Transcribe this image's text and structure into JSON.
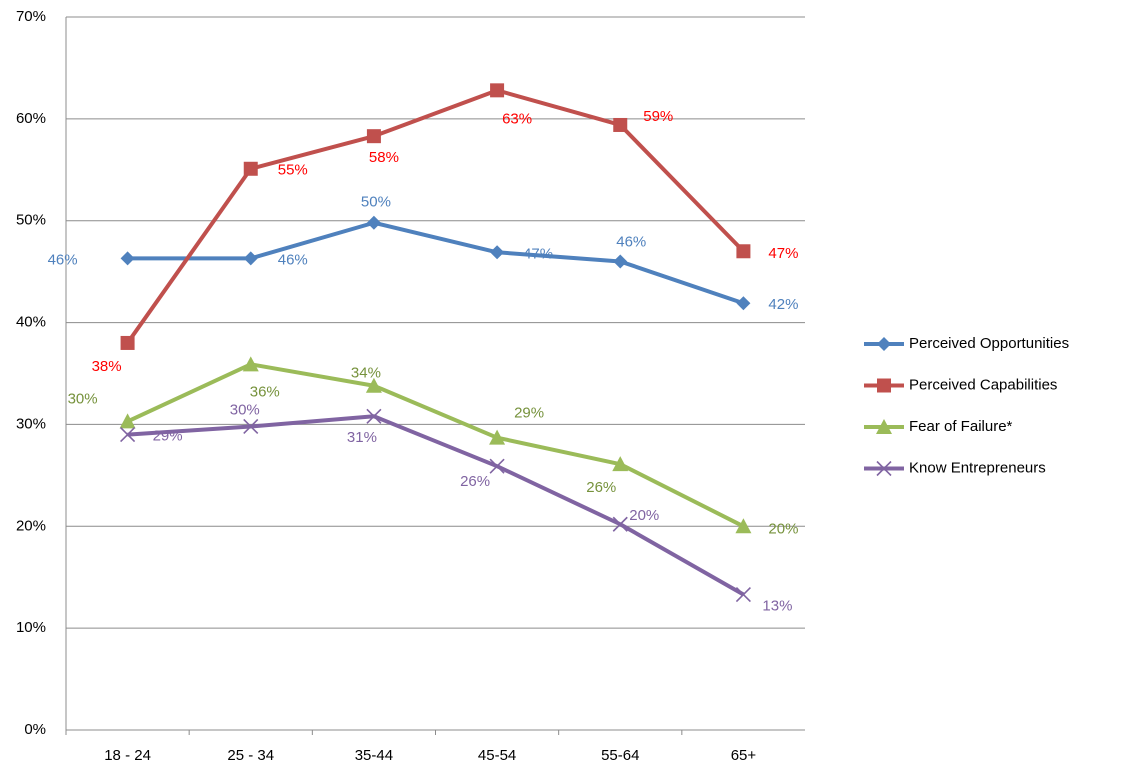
{
  "chart_data": {
    "type": "line",
    "categories": [
      "18 - 24",
      "25 - 34",
      "35-44",
      "45-54",
      "55-64",
      "65+"
    ],
    "ylim": [
      0,
      70
    ],
    "yticks": [
      {
        "value": 0,
        "label": "0%"
      },
      {
        "value": 10,
        "label": "10%"
      },
      {
        "value": 20,
        "label": "20%"
      },
      {
        "value": 30,
        "label": "30%"
      },
      {
        "value": 40,
        "label": "40%"
      },
      {
        "value": 50,
        "label": "50%"
      },
      {
        "value": 60,
        "label": "60%"
      },
      {
        "value": 70,
        "label": "70%"
      }
    ],
    "grid": true,
    "legend": "right",
    "series": [
      {
        "name": "Perceived Opportunities",
        "color": "#4f81bd",
        "label_color": "#4f81bd",
        "marker": "diamond",
        "values": [
          46.3,
          46.3,
          49.8,
          46.9,
          46.0,
          41.9
        ],
        "value_labels": [
          "46%",
          "46%",
          "50%",
          "47%",
          "46%",
          "42%"
        ]
      },
      {
        "name": "Perceived Capabilities",
        "color": "#c0504d",
        "label_color": "#ff0000",
        "marker": "square",
        "values": [
          38.0,
          55.1,
          58.3,
          62.8,
          59.4,
          47.0
        ],
        "value_labels": [
          "38%",
          "55%",
          "58%",
          "63%",
          "59%",
          "47%"
        ]
      },
      {
        "name": "Fear of Failure*",
        "color": "#9bbb59",
        "label_color": "#76923c",
        "marker": "triangle",
        "values": [
          30.3,
          35.9,
          33.8,
          28.7,
          26.1,
          20.0
        ],
        "value_labels": [
          "30%",
          "36%",
          "34%",
          "29%",
          "26%",
          "20%"
        ]
      },
      {
        "name": "Know Entrepreneurs",
        "color": "#8064a2",
        "label_color": "#8064a2",
        "marker": "x",
        "values": [
          29.0,
          29.8,
          30.8,
          25.9,
          20.2,
          13.3
        ],
        "value_labels": [
          "29%",
          "30%",
          "31%",
          "26%",
          "20%",
          "13%"
        ]
      }
    ]
  }
}
